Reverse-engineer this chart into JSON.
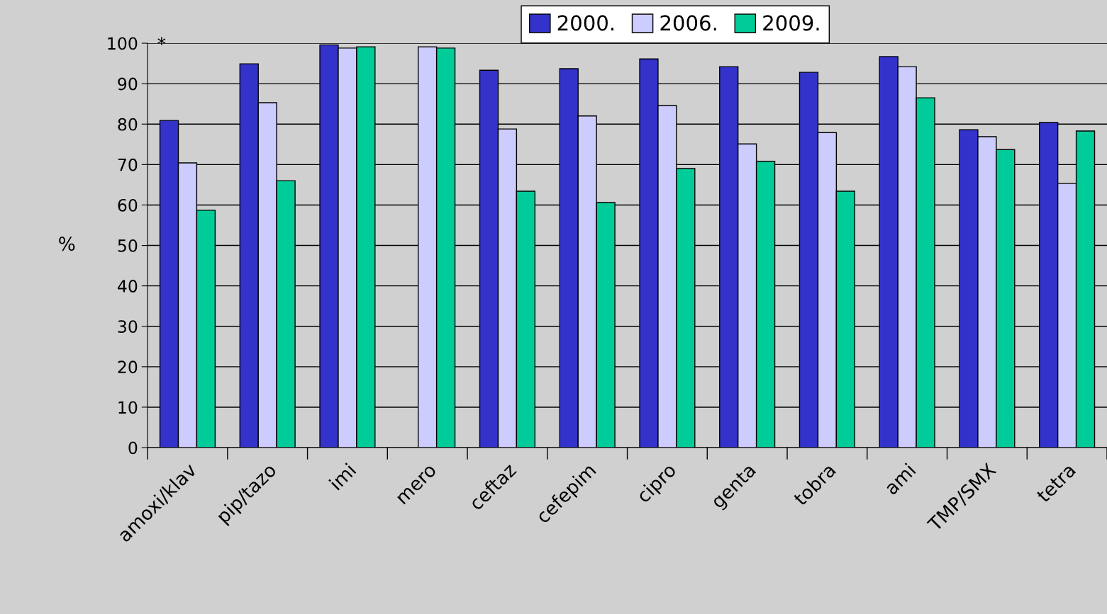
{
  "chart_data": {
    "type": "bar",
    "ylabel": "%",
    "categories": [
      "amoxi/klav",
      "pip/tazo",
      "imi",
      "mero",
      "ceftaz",
      "cefepim",
      "cipro",
      "genta",
      "tobra",
      "ami",
      "TMP/SMX",
      "tetra"
    ],
    "series": [
      {
        "name": "2000.",
        "color": "#3333cc",
        "values": [
          80.9,
          94.9,
          99.6,
          null,
          93.3,
          93.7,
          96.1,
          94.2,
          92.8,
          96.7,
          78.6,
          80.4
        ]
      },
      {
        "name": "2006.",
        "color": "#ccccff",
        "values": [
          70.4,
          85.3,
          98.8,
          99.1,
          78.8,
          82.0,
          84.6,
          75.1,
          77.9,
          94.2,
          76.9,
          65.3
        ]
      },
      {
        "name": "2009.",
        "color": "#00cc99",
        "values": [
          58.7,
          66.0,
          99.1,
          98.8,
          63.4,
          60.6,
          69.0,
          70.8,
          63.4,
          86.5,
          73.7,
          78.3
        ]
      }
    ],
    "ylim": [
      0,
      100
    ],
    "yticks": [
      0,
      10,
      20,
      30,
      40,
      50,
      60,
      70,
      80,
      90,
      100
    ],
    "grid": "y",
    "legend": "top",
    "annotations": [
      "*"
    ]
  }
}
